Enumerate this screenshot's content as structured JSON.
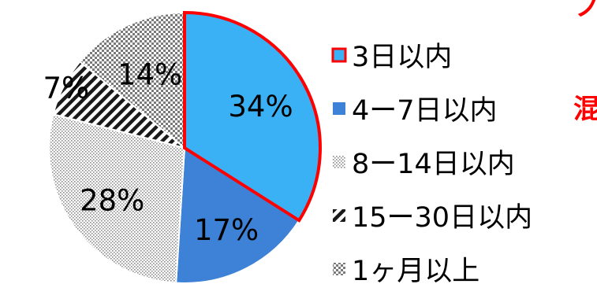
{
  "chart_data": {
    "type": "pie",
    "title": "",
    "categories": [
      "3日以内",
      "4ー7日以内",
      "8ー14日以内",
      "15ー30日以内",
      "1ヶ月以上"
    ],
    "values": [
      34,
      17,
      28,
      7,
      14
    ],
    "labels": [
      "34%",
      "17%",
      "28%",
      "7%",
      "14%"
    ],
    "start_angle_deg": 0,
    "direction": "clockwise",
    "legend_position": "right",
    "fills": [
      {
        "kind": "solid",
        "color": "#3BB1F5",
        "stroke": "#FF0000"
      },
      {
        "kind": "solid",
        "color": "#3D82D6"
      },
      {
        "kind": "dots",
        "color": "#8C8C8C"
      },
      {
        "kind": "diagonal-stripes",
        "color": "#1A1A1A"
      },
      {
        "kind": "checker",
        "color": "#7A7A7A"
      }
    ],
    "highlight_color": "#FF0000"
  },
  "cropped_edge_text": {
    "top_right": "ノ",
    "right": "混"
  }
}
